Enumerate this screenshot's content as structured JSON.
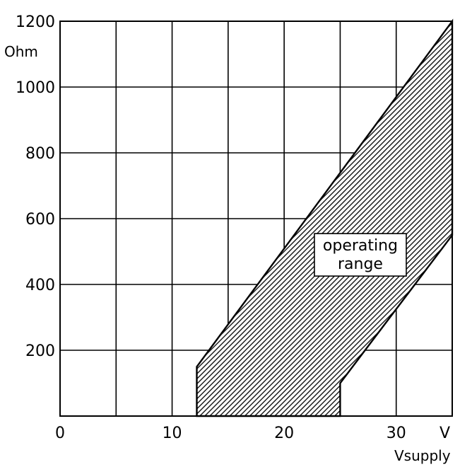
{
  "chart_data": {
    "type": "area",
    "x_unit": "V",
    "xlabel": "Vsupply",
    "y_unit": "Ohm",
    "xlim": [
      0,
      35
    ],
    "ylim": [
      0,
      1200
    ],
    "x_ticks": [
      0,
      10,
      20,
      30
    ],
    "x_tick_labels": [
      "0",
      "10",
      "20",
      "30"
    ],
    "y_ticks": [
      200,
      400,
      600,
      800,
      1000,
      1200
    ],
    "y_tick_labels": [
      "200",
      "400",
      "600",
      "800",
      "1000",
      "1200"
    ],
    "grid": true,
    "grid_x": [
      0,
      5,
      10,
      15,
      20,
      25,
      30,
      35
    ],
    "grid_y": [
      0,
      200,
      400,
      600,
      800,
      1000,
      1200
    ],
    "region": {
      "fill": "hatched",
      "points": [
        [
          12.2,
          0
        ],
        [
          12.2,
          150
        ],
        [
          35,
          1200
        ],
        [
          35,
          550
        ],
        [
          25,
          100
        ],
        [
          25,
          0
        ]
      ]
    },
    "annotations": [
      {
        "lines": [
          "operating",
          "range"
        ],
        "x": 26.8,
        "y": 490
      }
    ]
  }
}
